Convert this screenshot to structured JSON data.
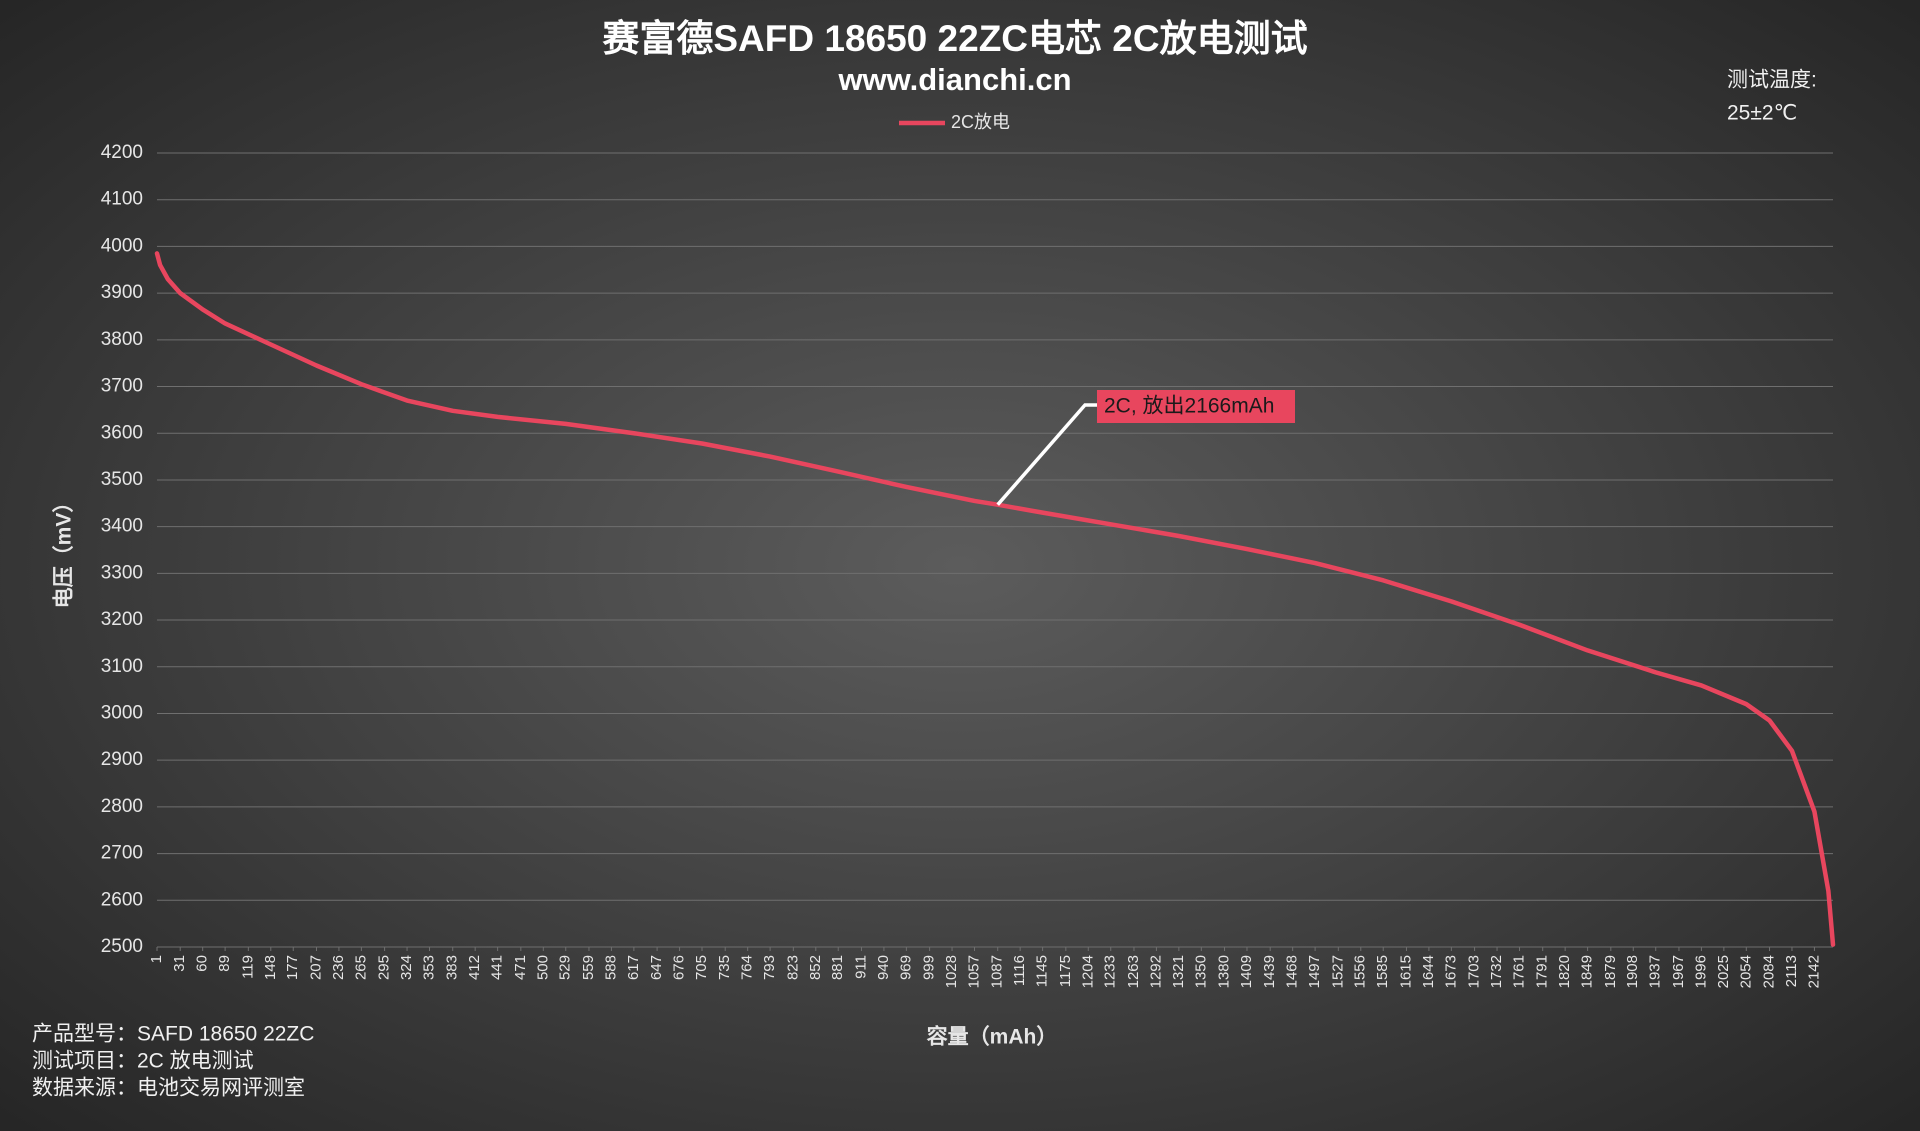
{
  "chart_data": {
    "type": "line",
    "title": "赛富德SAFD 18650 22ZC电芯 2C放电测试",
    "subtitle": "www.dianchi.cn",
    "xlabel": "容量（mAh）",
    "ylabel": "电压（mV）",
    "annotation": "2C, 放出2166mAh",
    "grid": true,
    "xlim": [
      1,
      2166
    ],
    "ylim": [
      2500,
      4200
    ],
    "yticks": [
      2500,
      2600,
      2700,
      2800,
      2900,
      3000,
      3100,
      3200,
      3300,
      3400,
      3500,
      3600,
      3700,
      3800,
      3900,
      4000,
      4100,
      4200
    ],
    "xticks": [
      1,
      31,
      60,
      89,
      119,
      148,
      177,
      207,
      236,
      265,
      295,
      324,
      353,
      383,
      412,
      441,
      471,
      500,
      529,
      559,
      588,
      617,
      647,
      676,
      705,
      735,
      764,
      793,
      823,
      852,
      881,
      911,
      940,
      969,
      999,
      1028,
      1057,
      1087,
      1116,
      1145,
      1175,
      1204,
      1233,
      1263,
      1292,
      1321,
      1350,
      1380,
      1409,
      1439,
      1468,
      1497,
      1527,
      1556,
      1585,
      1615,
      1644,
      1673,
      1703,
      1732,
      1761,
      1791,
      1820,
      1849,
      1879,
      1908,
      1937,
      1967,
      1996,
      2025,
      2054,
      2084,
      2113,
      2142
    ],
    "series": [
      {
        "name": "2C放电",
        "color": "#e8465e",
        "x": [
          1,
          5,
          15,
          31,
          60,
          89,
          148,
          207,
          265,
          324,
          383,
          441,
          529,
          617,
          705,
          793,
          881,
          969,
          1057,
          1087,
          1145,
          1233,
          1321,
          1409,
          1497,
          1585,
          1673,
          1761,
          1849,
          1937,
          1996,
          2054,
          2084,
          2113,
          2142,
          2160,
          2166
        ],
        "values": [
          3985,
          3960,
          3930,
          3900,
          3865,
          3835,
          3790,
          3745,
          3705,
          3670,
          3648,
          3635,
          3620,
          3600,
          3578,
          3550,
          3518,
          3485,
          3455,
          3447,
          3430,
          3405,
          3380,
          3352,
          3322,
          3285,
          3240,
          3190,
          3135,
          3088,
          3060,
          3020,
          2985,
          2920,
          2790,
          2620,
          2505
        ]
      }
    ]
  },
  "temperature_note": [
    "测试温度:",
    "25±2℃"
  ],
  "footer": [
    "产品型号：SAFD 18650 22ZC",
    "测试项目：2C 放电测试",
    "数据来源：电池交易网评测室"
  ]
}
